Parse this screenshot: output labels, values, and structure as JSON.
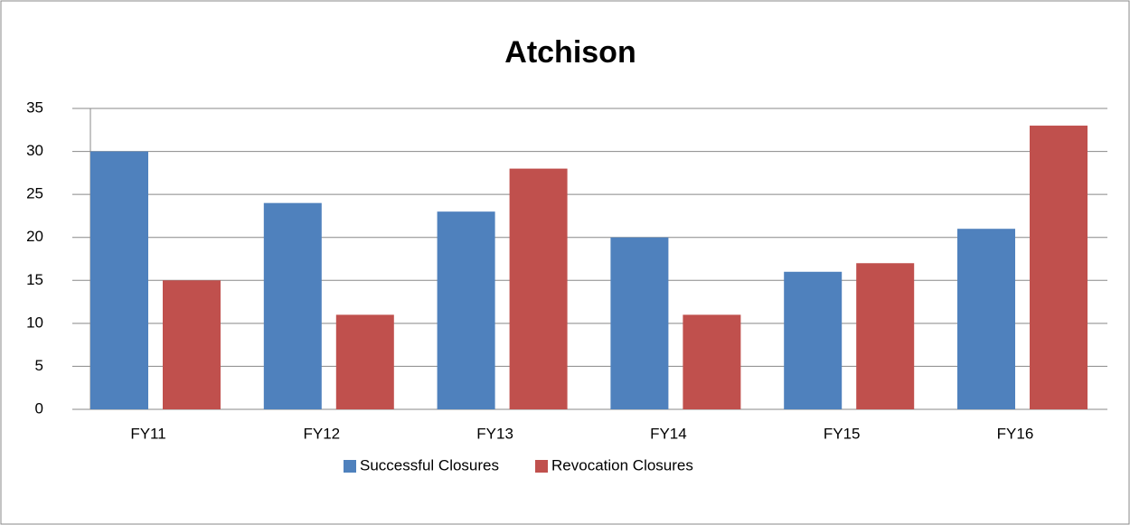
{
  "chart_data": {
    "type": "bar",
    "title": "Atchison",
    "categories": [
      "FY11",
      "FY12",
      "FY13",
      "FY14",
      "FY15",
      "FY16"
    ],
    "series": [
      {
        "name": "Successful Closures",
        "color": "#4f81bd",
        "values": [
          30,
          24,
          23,
          20,
          16,
          21
        ]
      },
      {
        "name": "Revocation Closures",
        "color": "#c0504d",
        "values": [
          15,
          11,
          28,
          11,
          17,
          33
        ]
      }
    ],
    "ylim": [
      0,
      35
    ],
    "yticks": [
      0,
      5,
      10,
      15,
      20,
      25,
      30,
      35
    ],
    "grid": true,
    "legend": "bottom"
  }
}
